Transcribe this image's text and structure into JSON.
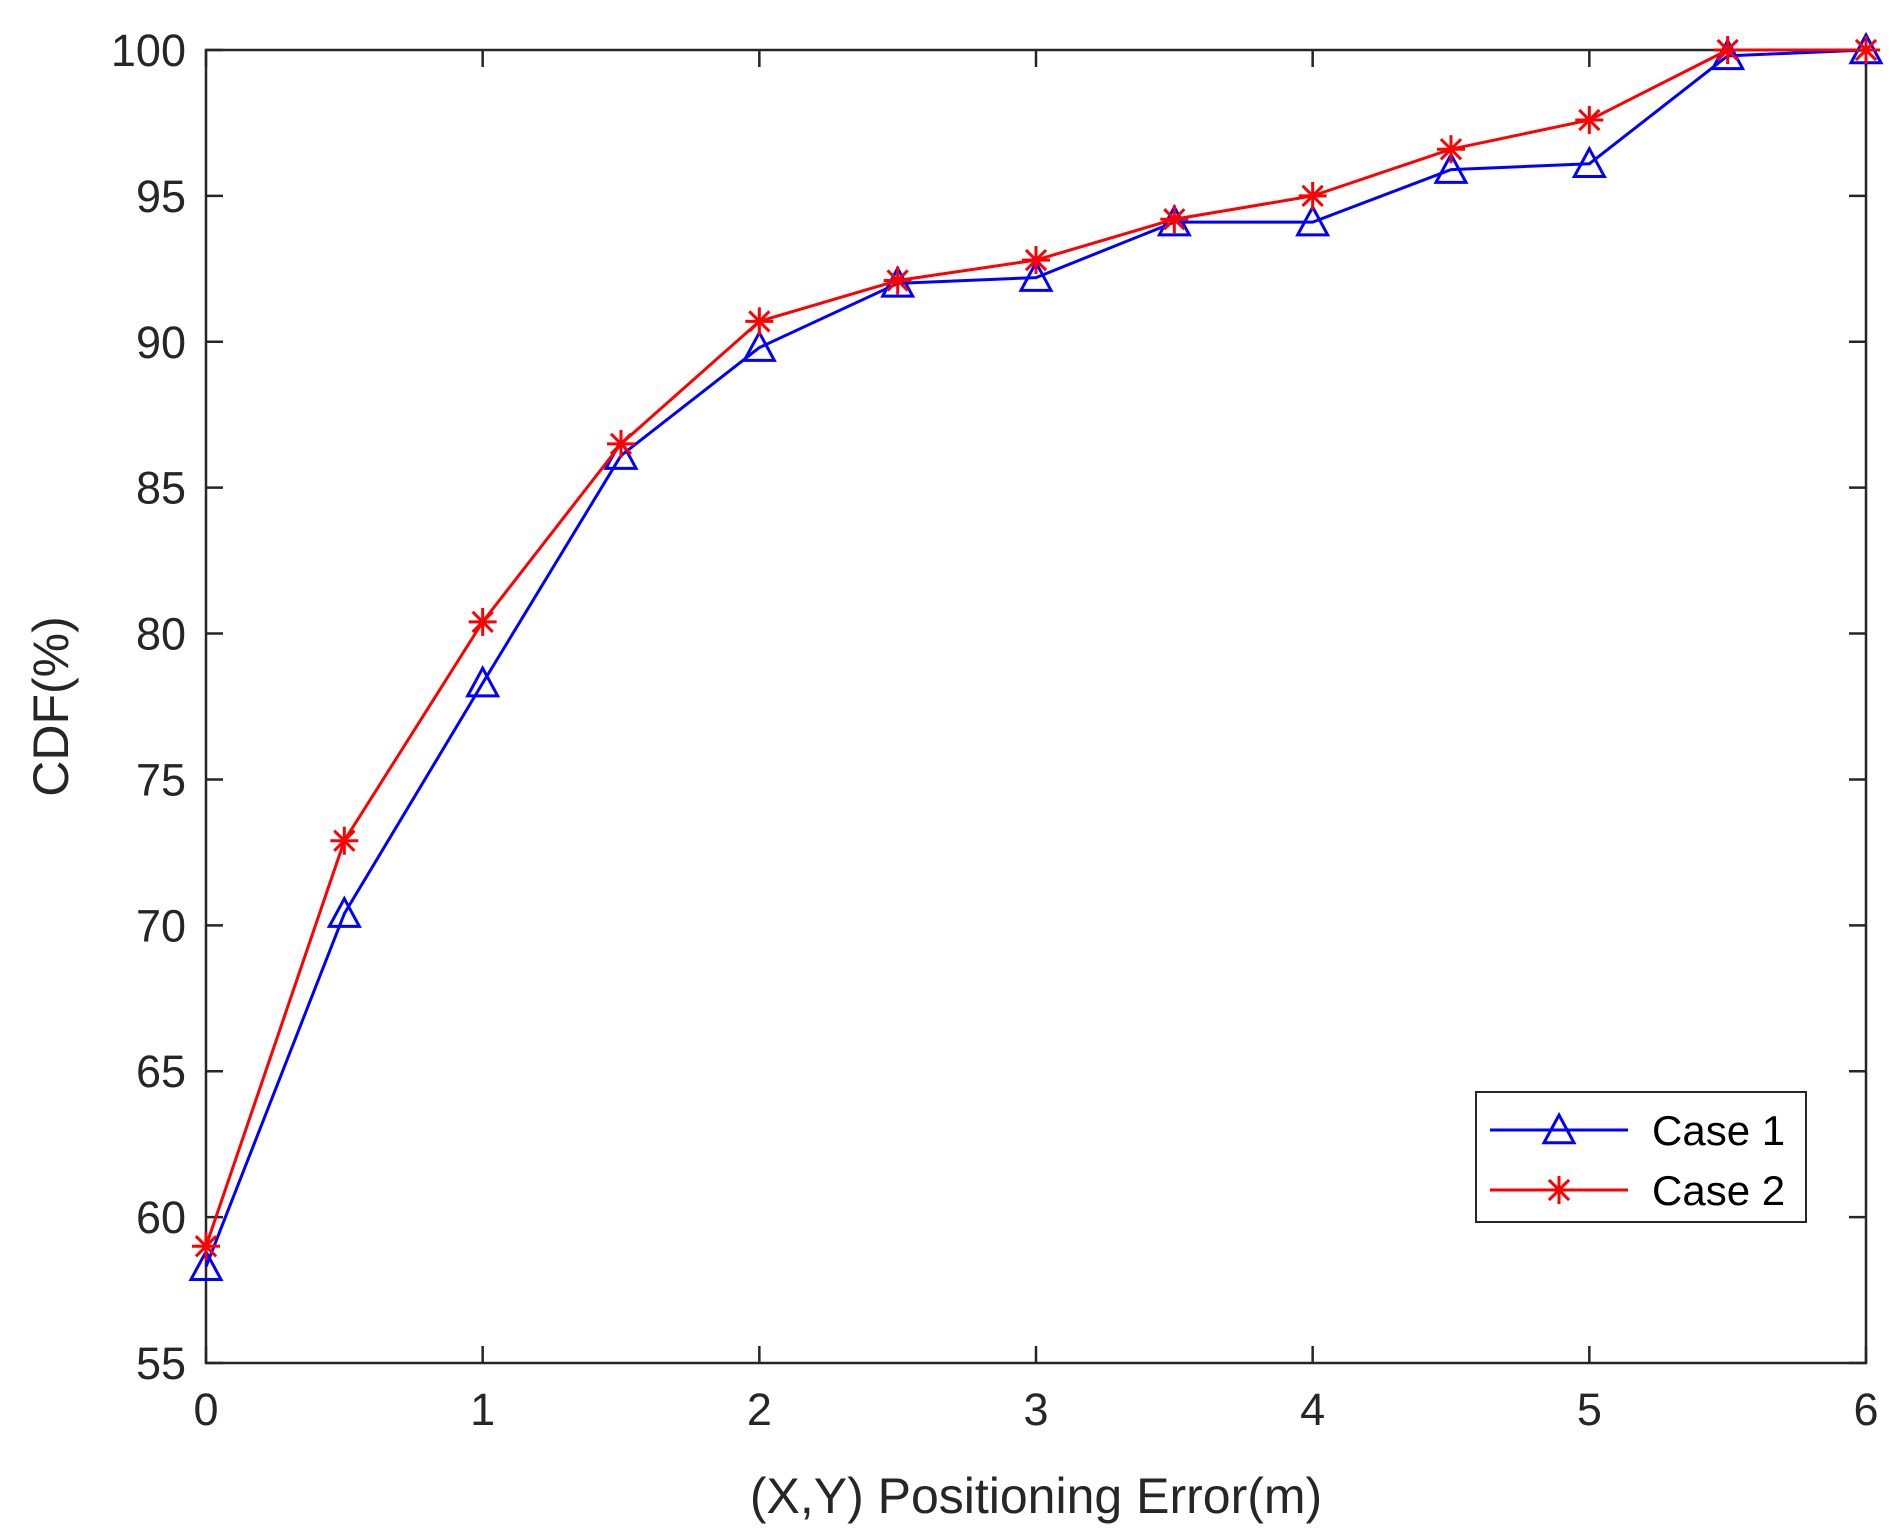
{
  "chart_data": {
    "type": "line",
    "title": "",
    "xlabel": "(X,Y) Positioning Error(m)",
    "ylabel": "CDF(%)",
    "xlim": [
      0,
      6
    ],
    "ylim": [
      55,
      100
    ],
    "xticks": [
      "0",
      "1",
      "2",
      "3",
      "4",
      "5",
      "6"
    ],
    "yticks": [
      "55",
      "60",
      "65",
      "70",
      "75",
      "80",
      "85",
      "90",
      "95",
      "100"
    ],
    "grid": false,
    "legend_position": "bottom-right",
    "x": [
      0,
      0.5,
      1,
      1.5,
      2,
      2.5,
      3,
      3.5,
      4,
      4.5,
      5,
      5.5,
      6
    ],
    "series": [
      {
        "name": "Case 1",
        "marker": "triangle",
        "color": "#0000ff",
        "values": [
          58.3,
          70.4,
          78.3,
          86.1,
          89.8,
          92.0,
          92.2,
          94.1,
          94.1,
          95.9,
          96.1,
          99.8,
          100.0
        ]
      },
      {
        "name": "Case 2",
        "marker": "asterisk",
        "color": "#ff0000",
        "values": [
          59.0,
          72.9,
          80.4,
          86.5,
          90.7,
          92.1,
          92.8,
          94.2,
          95.0,
          96.6,
          97.6,
          100.0,
          100.0
        ]
      }
    ]
  }
}
